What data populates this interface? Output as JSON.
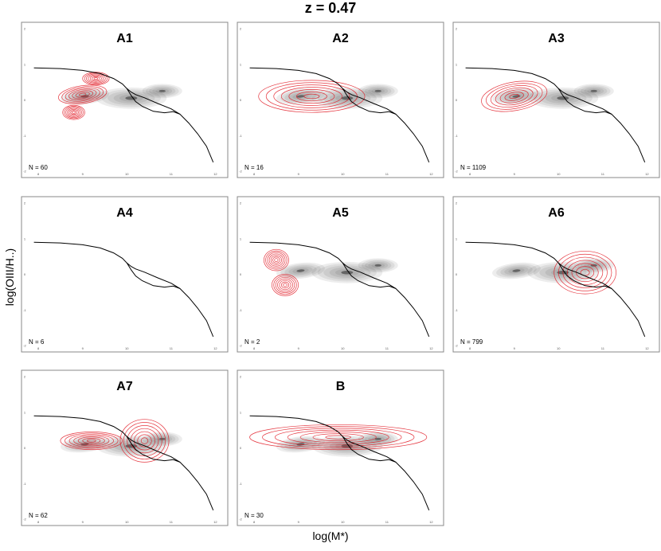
{
  "title": "z = 0.47",
  "xlabel": "log(M*)",
  "ylabel": "log(OIII/H..)",
  "colors": {
    "grey_density": "#000000",
    "red_contour": "#e0141e",
    "curve": "#000000"
  },
  "chart_data": {
    "type": "contour",
    "xlim": [
      7.8,
      12.1
    ],
    "ylim": [
      -2.0,
      2.0
    ],
    "x_ticks": [
      8,
      9,
      10,
      11,
      12
    ],
    "y_ticks": [
      -2,
      -1,
      0,
      1,
      2
    ],
    "panels": [
      {
        "label": "A1",
        "n_text": "N = 60",
        "red": [
          {
            "cx": 9.0,
            "cy": 0.15,
            "sx": 0.55,
            "sy": 0.25,
            "rot": -8
          },
          {
            "cx": 9.3,
            "cy": 0.6,
            "sx": 0.3,
            "sy": 0.18,
            "rot": 0
          },
          {
            "cx": 8.8,
            "cy": -0.35,
            "sx": 0.25,
            "sy": 0.2,
            "rot": 0
          }
        ]
      },
      {
        "label": "A2",
        "n_text": "N = 16",
        "red": [
          {
            "cx": 9.3,
            "cy": 0.1,
            "sx": 1.2,
            "sy": 0.45,
            "rot": 0
          }
        ]
      },
      {
        "label": "A3",
        "n_text": "N = 1109",
        "red": [
          {
            "cx": 9.0,
            "cy": 0.1,
            "sx": 0.75,
            "sy": 0.4,
            "rot": -10
          }
        ]
      },
      {
        "label": "A4",
        "n_text": "N = 6",
        "red": []
      },
      {
        "label": "A5",
        "n_text": "N = 2",
        "red": [
          {
            "cx": 8.5,
            "cy": 0.4,
            "sx": 0.28,
            "sy": 0.3,
            "rot": 0
          },
          {
            "cx": 8.7,
            "cy": -0.3,
            "sx": 0.3,
            "sy": 0.3,
            "rot": 0
          }
        ]
      },
      {
        "label": "A6",
        "n_text": "N = 799",
        "red": [
          {
            "cx": 10.6,
            "cy": 0.05,
            "sx": 0.7,
            "sy": 0.6,
            "rot": 0
          }
        ]
      },
      {
        "label": "A7",
        "n_text": "N = 62",
        "red": [
          {
            "cx": 9.2,
            "cy": 0.2,
            "sx": 0.7,
            "sy": 0.25,
            "rot": 0
          },
          {
            "cx": 10.4,
            "cy": 0.2,
            "sx": 0.55,
            "sy": 0.6,
            "rot": 0
          }
        ]
      },
      {
        "label": "B",
        "n_text": "N = 30",
        "red": [
          {
            "cx": 9.9,
            "cy": 0.3,
            "sx": 2.0,
            "sy": 0.35,
            "rot": 0
          }
        ]
      }
    ],
    "grey_density": [
      {
        "cx": 9.05,
        "cy": 0.1,
        "sx": 0.55,
        "sy": 0.22,
        "rot": -6
      },
      {
        "cx": 10.1,
        "cy": 0.05,
        "sx": 0.8,
        "sy": 0.3,
        "rot": 0
      },
      {
        "cx": 10.8,
        "cy": 0.25,
        "sx": 0.45,
        "sy": 0.2,
        "rot": 0
      }
    ],
    "demarcation_upper": [
      [
        7.9,
        0.9
      ],
      [
        8.5,
        0.88
      ],
      [
        9.0,
        0.83
      ],
      [
        9.4,
        0.74
      ],
      [
        9.7,
        0.6
      ],
      [
        9.9,
        0.45
      ],
      [
        10.0,
        0.32
      ],
      [
        10.1,
        0.22
      ],
      [
        10.2,
        0.15
      ],
      [
        10.4,
        0.06
      ],
      [
        10.7,
        -0.1
      ],
      [
        11.0,
        -0.25
      ],
      [
        11.2,
        -0.4
      ],
      [
        11.4,
        -0.65
      ],
      [
        11.6,
        -0.95
      ],
      [
        11.8,
        -1.3
      ],
      [
        11.95,
        -1.75
      ]
    ],
    "demarcation_lower": [
      [
        10.0,
        0.32
      ],
      [
        10.1,
        0.12
      ],
      [
        10.2,
        -0.05
      ],
      [
        10.35,
        -0.18
      ],
      [
        10.6,
        -0.32
      ],
      [
        10.85,
        -0.36
      ],
      [
        11.05,
        -0.33
      ],
      [
        11.2,
        -0.4
      ]
    ]
  }
}
